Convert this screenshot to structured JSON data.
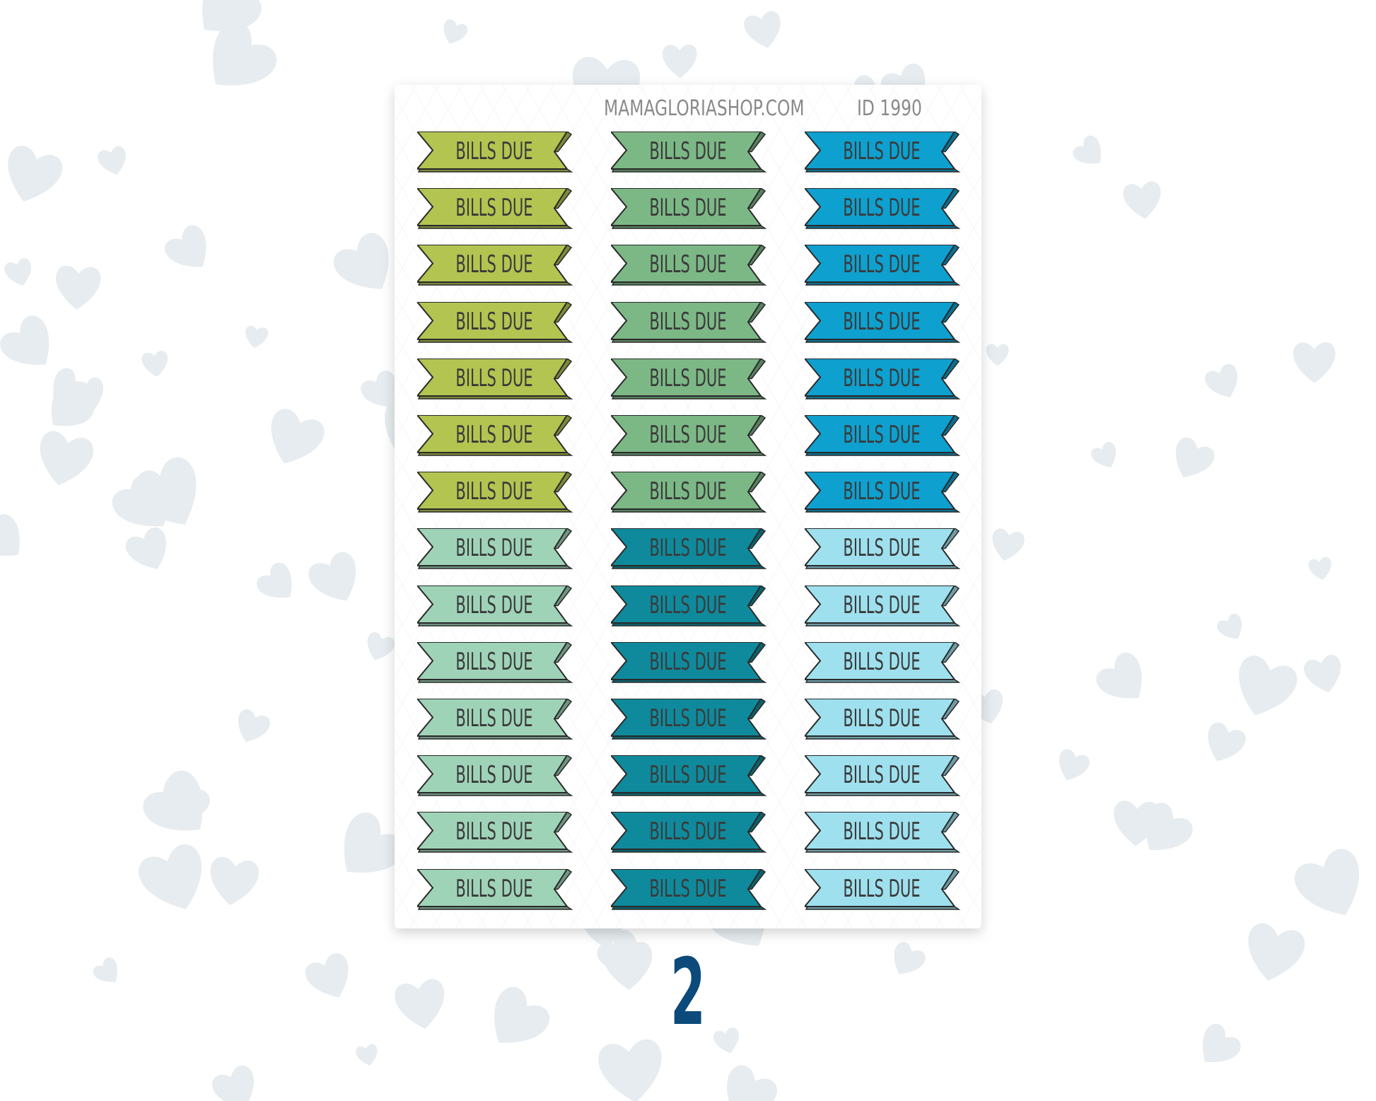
{
  "sheet": {
    "site": "MAMAGLORIASHOP.COM",
    "id_label": "ID 1990",
    "sticker_text": "BILLS DUE",
    "rows": 14,
    "columns": [
      {
        "colors": [
          "#b3c451",
          "#b3c451",
          "#b3c451",
          "#b3c451",
          "#b3c451",
          "#b3c451",
          "#b3c451",
          "#9fd3b8",
          "#9fd3b8",
          "#9fd3b8",
          "#9fd3b8",
          "#9fd3b8",
          "#9fd3b8",
          "#9fd3b8"
        ]
      },
      {
        "colors": [
          "#7cb886",
          "#7cb886",
          "#7cb886",
          "#7cb886",
          "#7cb886",
          "#7cb886",
          "#7cb886",
          "#0f8a9c",
          "#0f8a9c",
          "#0f8a9c",
          "#0f8a9c",
          "#0f8a9c",
          "#0f8a9c",
          "#0f8a9c"
        ]
      },
      {
        "colors": [
          "#0ea0cf",
          "#0ea0cf",
          "#0ea0cf",
          "#0ea0cf",
          "#0ea0cf",
          "#0ea0cf",
          "#0ea0cf",
          "#9ee0ee",
          "#9ee0ee",
          "#9ee0ee",
          "#9ee0ee",
          "#9ee0ee",
          "#9ee0ee",
          "#9ee0ee"
        ]
      }
    ]
  },
  "page_number": "2",
  "colors": {
    "background_heart": "#e6ecef",
    "number": "#0b4a7a"
  }
}
